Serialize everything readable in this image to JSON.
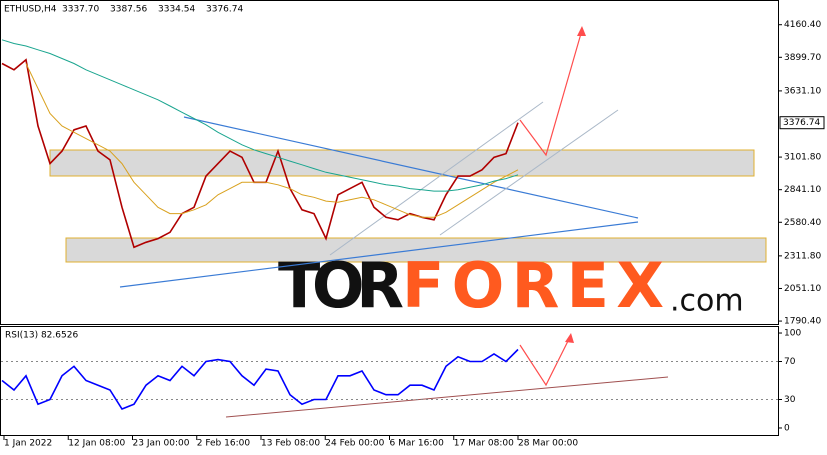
{
  "header": {
    "symbol": "ETHUSD,H4",
    "ohlc": [
      "3337.70",
      "3387.56",
      "3334.54",
      "3376.74"
    ]
  },
  "watermark": {
    "part1": "TOR",
    "part2": "FOREX",
    "part3": ".com"
  },
  "chart_data": [
    {
      "type": "line",
      "name": "price",
      "ylim": [
        1759,
        4358
      ],
      "yticks": [
        {
          "value": 4160.4,
          "label": "4160.40"
        },
        {
          "value": 3899.7,
          "label": "3899.70"
        },
        {
          "value": 3631.1,
          "label": "3631.10"
        },
        {
          "value": 3101.8,
          "label": "3101.80"
        },
        {
          "value": 2841.1,
          "label": "2841.10"
        },
        {
          "value": 2580.4,
          "label": "2580.40"
        },
        {
          "value": 2311.8,
          "label": "2311.80"
        },
        {
          "value": 2051.1,
          "label": "2051.10"
        },
        {
          "value": 1790.4,
          "label": "1790.40"
        }
      ],
      "last_price": {
        "value": 3376.74,
        "label": "3376.74"
      },
      "series": [
        {
          "color": "#b00000",
          "values": [
            3850,
            3800,
            3880,
            3350,
            3050,
            3150,
            3320,
            3350,
            3150,
            3080,
            2700,
            2380,
            2420,
            2450,
            2500,
            2650,
            2700,
            2950,
            3050,
            3150,
            3100,
            2900,
            2900,
            3150,
            2850,
            2680,
            2650,
            2450,
            2800,
            2850,
            2900,
            2700,
            2620,
            2600,
            2650,
            2620,
            2600,
            2800,
            2950,
            2950,
            3000,
            3100,
            3130,
            3376.74
          ]
        },
        {
          "color": "#d9a11e",
          "values": [
            null,
            null,
            3850,
            3650,
            3450,
            3350,
            3300,
            3250,
            3200,
            3150,
            3050,
            2900,
            2800,
            2700,
            2650,
            2650,
            2680,
            2720,
            2800,
            2850,
            2900,
            2900,
            2900,
            2880,
            2850,
            2800,
            2780,
            2750,
            2740,
            2760,
            2780,
            2760,
            2720,
            2680,
            2640,
            2620,
            2620,
            2660,
            2720,
            2780,
            2840,
            2900,
            2950,
            3000
          ]
        },
        {
          "color": "#1aa58f",
          "values": [
            4040,
            4010,
            3990,
            3960,
            3930,
            3890,
            3850,
            3800,
            3760,
            3720,
            3680,
            3640,
            3600,
            3560,
            3510,
            3460,
            3410,
            3360,
            3300,
            3250,
            3200,
            3160,
            3130,
            3100,
            3070,
            3040,
            3010,
            2980,
            2960,
            2940,
            2920,
            2900,
            2880,
            2870,
            2850,
            2840,
            2830,
            2830,
            2840,
            2860,
            2880,
            2910,
            2930,
            2960
          ]
        }
      ]
    },
    {
      "type": "line",
      "name": "rsi",
      "title": "RSI(13) 82.6526",
      "ylim": [
        -7.4,
        107.4
      ],
      "yticks": [
        100,
        70,
        30,
        0
      ],
      "levels": [
        70,
        30
      ],
      "series": [
        {
          "color": "#0000ff",
          "values": [
            50,
            40,
            55,
            25,
            30,
            55,
            65,
            50,
            45,
            40,
            20,
            25,
            45,
            55,
            50,
            65,
            55,
            70,
            72,
            70,
            55,
            45,
            62,
            60,
            35,
            25,
            30,
            30,
            55,
            55,
            60,
            40,
            35,
            35,
            45,
            45,
            40,
            65,
            75,
            70,
            70,
            78,
            70,
            82.65
          ]
        }
      ],
      "x_labels": [
        "1 Jan 2022",
        "12 Jan 08:00",
        "23 Jan 00:00",
        "2 Feb 16:00",
        "13 Feb 08:00",
        "24 Feb 00:00",
        "6 Mar 16:00",
        "17 Mar 08:00",
        "28 Mar 00:00"
      ]
    }
  ]
}
